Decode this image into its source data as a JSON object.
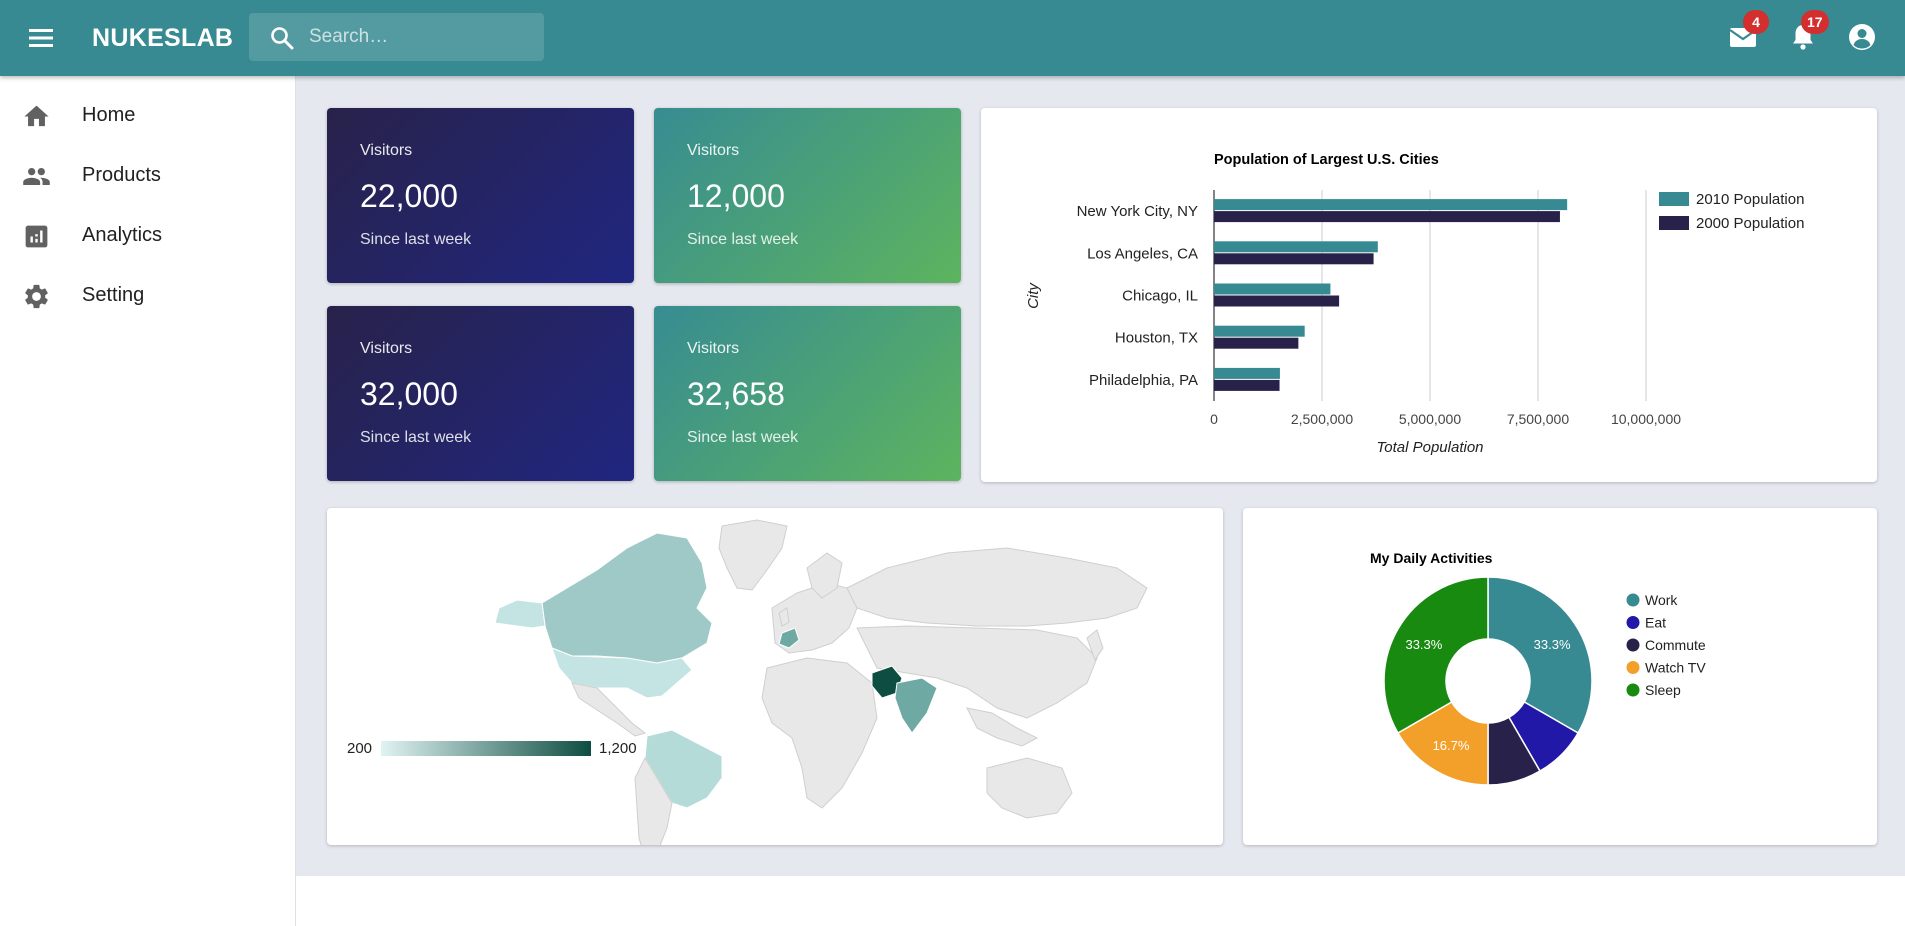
{
  "app": {
    "brand": "NUKESLAB",
    "search_placeholder": "Search…",
    "mail_badge": "4",
    "notification_badge": "17"
  },
  "sidebar": {
    "items": [
      {
        "label": "Home",
        "icon": "home-icon"
      },
      {
        "label": "Products",
        "icon": "people-icon"
      },
      {
        "label": "Analytics",
        "icon": "analytics-icon"
      },
      {
        "label": "Setting",
        "icon": "gear-icon"
      }
    ]
  },
  "stats": [
    {
      "title": "Visitors",
      "value": "22,000",
      "subtitle": "Since last week"
    },
    {
      "title": "Visitors",
      "value": "12,000",
      "subtitle": "Since last week"
    },
    {
      "title": "Visitors",
      "value": "32,000",
      "subtitle": "Since last week"
    },
    {
      "title": "Visitors",
      "value": "32,658",
      "subtitle": "Since last week"
    }
  ],
  "colors": {
    "appbar": "#378a91",
    "teal": "#378a91",
    "navy": "#28224a",
    "blue": "#2218a8",
    "orange": "#f3a02a",
    "green": "#188a10",
    "badge": "#d32f2f"
  },
  "geo_legend": {
    "min": "200",
    "max": "1,200"
  },
  "chart_data": [
    {
      "type": "bar",
      "orientation": "horizontal",
      "title": "Population of Largest U.S. Cities",
      "xlabel": "Total Population",
      "ylabel": "City",
      "categories": [
        "New York City, NY",
        "Los Angeles, CA",
        "Chicago, IL",
        "Houston, TX",
        "Philadelphia, PA"
      ],
      "series": [
        {
          "name": "2010 Population",
          "color": "#378a91",
          "values": [
            8175000,
            3792000,
            2695000,
            2099000,
            1526000
          ]
        },
        {
          "name": "2000 Population",
          "color": "#28224a",
          "values": [
            8008000,
            3694000,
            2896000,
            1953000,
            1517000
          ]
        }
      ],
      "xticks": [
        "0",
        "2,500,000",
        "5,000,000",
        "7,500,000",
        "10,000,000"
      ],
      "xlim": [
        0,
        10000000
      ],
      "legend": "right",
      "grid": true
    },
    {
      "type": "pie",
      "donut": true,
      "title": "My Daily Activities",
      "labels": [
        "Work",
        "Eat",
        "Commute",
        "Watch TV",
        "Sleep"
      ],
      "values": [
        4,
        1,
        1,
        2,
        4
      ],
      "slice_labels": [
        "33.3%",
        "",
        "",
        "16.7%",
        "33.3%"
      ],
      "colors": [
        "#378a91",
        "#2218a8",
        "#28224a",
        "#f3a02a",
        "#188a10"
      ],
      "legend": "right"
    }
  ]
}
